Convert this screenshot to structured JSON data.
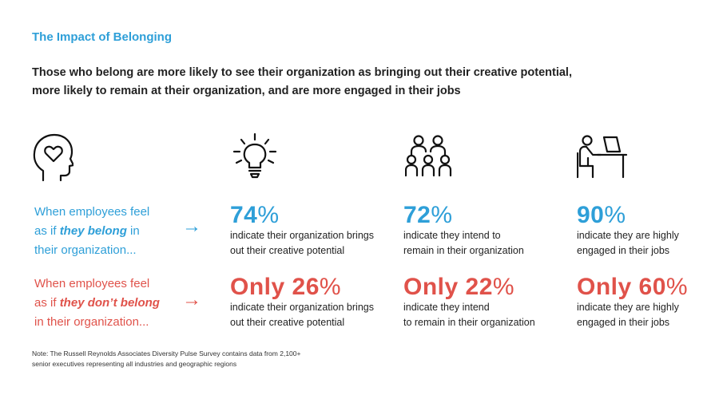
{
  "title": "The Impact of Belonging",
  "subtitle_line1": "Those who belong are more likely to see their organization as bringing out their creative potential,",
  "subtitle_line2": "more likely to remain at their organization, and are more engaged in their jobs",
  "icons": [
    "head-heart-icon",
    "lightbulb-icon",
    "people-group-icon",
    "person-desk-icon"
  ],
  "colors": {
    "positive": "#2e9fd8",
    "negative": "#e0524a"
  },
  "rows": {
    "belong": {
      "label_pre": "When employees feel",
      "label_mid_pre": "as if ",
      "label_em": "they belong",
      "label_mid_post": " in",
      "label_post": "their organization...",
      "arrow": "→",
      "stats": [
        {
          "prefix": "",
          "value": "74",
          "pct": "%",
          "line1": "indicate their organization brings",
          "line2": "out their creative potential"
        },
        {
          "prefix": "",
          "value": "72",
          "pct": "%",
          "line1": "indicate they intend to",
          "line2": "remain in their organization"
        },
        {
          "prefix": "",
          "value": "90",
          "pct": "%",
          "line1": "indicate they are highly",
          "line2": "engaged in their jobs"
        }
      ]
    },
    "not_belong": {
      "label_pre": "When employees feel",
      "label_mid_pre": "as if ",
      "label_em": "they don’t belong",
      "label_mid_post": "",
      "label_post": "in their organization...",
      "arrow": "→",
      "stats": [
        {
          "prefix": "Only ",
          "value": "26",
          "pct": "%",
          "line1": "indicate their organization brings",
          "line2": "out their creative potential"
        },
        {
          "prefix": "Only ",
          "value": "22",
          "pct": "%",
          "line1": "indicate they intend",
          "line2": "to remain in their organization"
        },
        {
          "prefix": "Only ",
          "value": "60",
          "pct": "%",
          "line1": "indicate they are highly",
          "line2": "engaged in their jobs"
        }
      ]
    }
  },
  "note_line1": "Note: The Russell Reynolds Associates Diversity Pulse Survey contains data from 2,100+",
  "note_line2": "senior executives representing all industries and geographic regions"
}
